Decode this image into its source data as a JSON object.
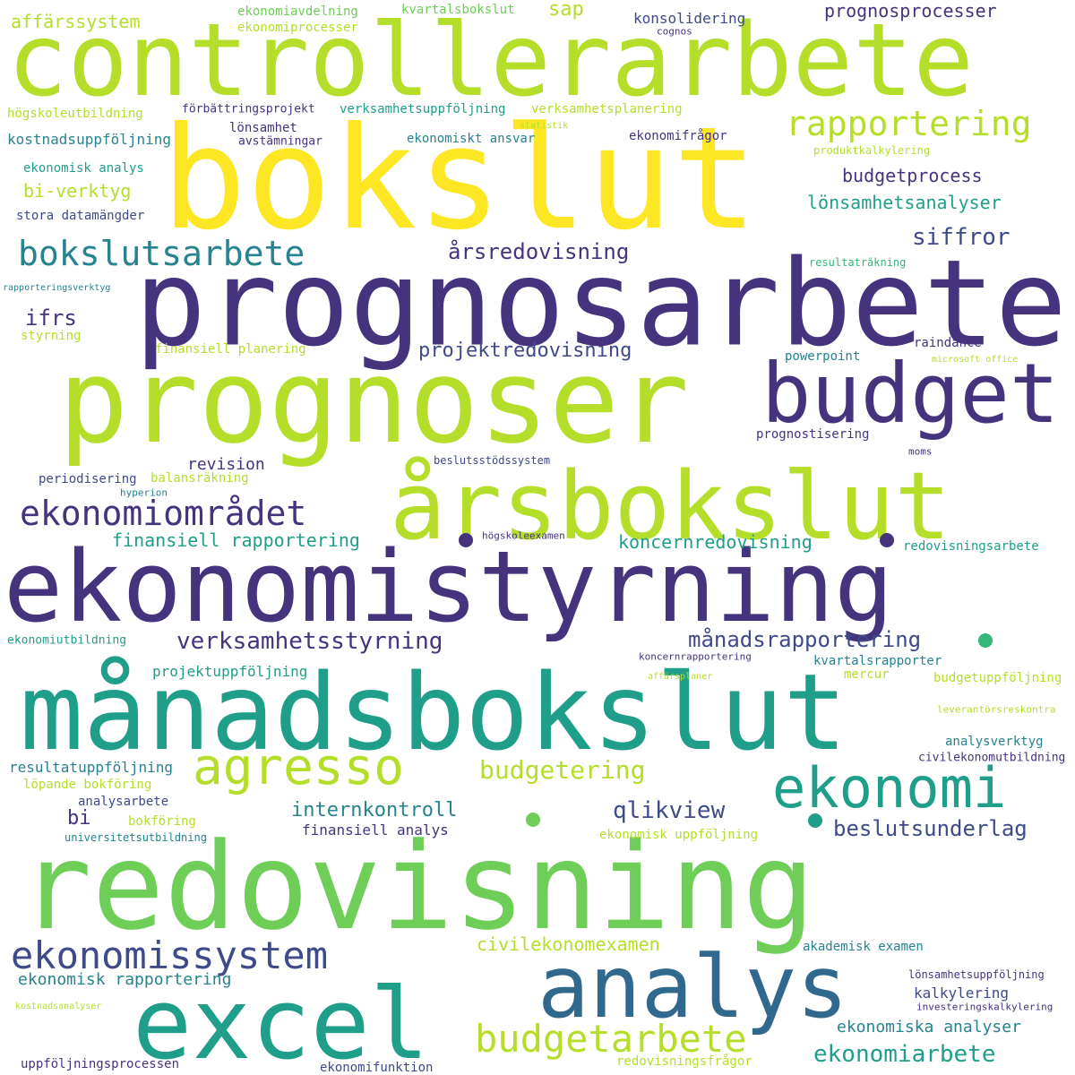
{
  "colors": {
    "background": "#ffffff",
    "dark_purple": "#46337e",
    "indigo": "#3e4a89",
    "blue": "#31688e",
    "teal": "#26838f",
    "sea_green": "#1f9e89",
    "green": "#35b779",
    "light_green": "#6ece58",
    "lime": "#b5de2b",
    "yellow": "#fde725"
  },
  "words": [
    "controllerarbete",
    "bokslut",
    "prognosarbete",
    "prognoser",
    "budget",
    "årsbokslut",
    "ekonomistyrning",
    "månadsbokslut",
    "agresso",
    "ekonomi",
    "redovisning",
    "analys",
    "excel",
    "ekonomissystem",
    "budgetarbete",
    "rapportering",
    "bokslutsarbete",
    "affärssystem",
    "ekonomiavdelning",
    "kvartalsbokslut",
    "sap",
    "konsolidering",
    "prognosprocesser",
    "ekonomiprocesser",
    "cognos",
    "förbättringsprojekt",
    "verksamhetsuppföljning",
    "verksamhetsplanering",
    "högskoleutbildning",
    "statistik",
    "lönsamhet",
    "kostnadsuppföljning",
    "avstämningar",
    "ekonomiskt ansvar",
    "ekonomifrågor",
    "produktkalkylering",
    "ekonomisk analys",
    "budgetprocess",
    "bi-verktyg",
    "lönsamhetsanalyser",
    "stora datamängder",
    "årsredovisning",
    "siffror",
    "resultaträkning",
    "rapporteringsverktyg",
    "ifrs",
    "styrning",
    "finansiell planering",
    "projektredovisning",
    "raindance",
    "powerpoint",
    "microsoft office",
    "prognostisering",
    "revision",
    "beslutsstödssystem",
    "moms",
    "periodisering",
    "balansräkning",
    "hyperion",
    "ekonomiområdet",
    "finansiell rapportering",
    "koncernredovisning",
    "högskoleexamen",
    "redovisningsarbete",
    "ekonomiutbildning",
    "verksamhetsstyrning",
    "månadsrapportering",
    "projektuppföljning",
    "koncernrapportering",
    "kvartalsrapporter",
    "affärsplaner",
    "mercur",
    "budgetuppföljning",
    "leverantörsreskontra",
    "analysverktyg",
    "civilekonomutbildning",
    "resultatuppföljning",
    "budgetering",
    "löpande bokföring",
    "analysarbete",
    "internkontroll",
    "qlikview",
    "bi",
    "bokföring",
    "finansiell analys",
    "universitetsutbildning",
    "ekonomisk uppföljning",
    "beslutsunderlag",
    "civilekonomexamen",
    "akademisk examen",
    "ekonomisk rapportering",
    "lönsamhetsuppföljning",
    "kalkylering",
    "investeringskalkylering",
    "kostnadsanalyser",
    "ekonomiska analyser",
    "ekonomiarbete",
    "uppföljningsprocessen",
    "ekonomifunktion",
    "redovisningsfrågor"
  ]
}
